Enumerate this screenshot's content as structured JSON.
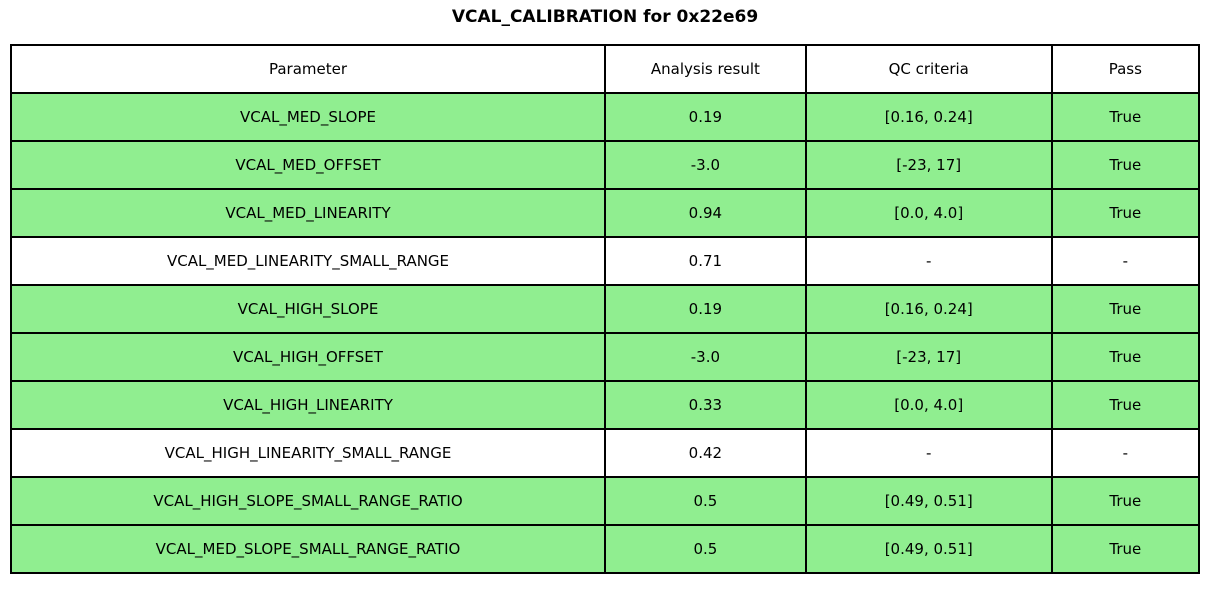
{
  "chart_data": {
    "type": "table",
    "title": "VCAL_CALIBRATION for 0x22e69",
    "columns": [
      "Parameter",
      "Analysis result",
      "QC criteria",
      "Pass"
    ],
    "rows": [
      {
        "parameter": "VCAL_MED_SLOPE",
        "analysis_result": "0.19",
        "qc_criteria": "[0.16, 0.24]",
        "pass": "True",
        "row_style": "pass"
      },
      {
        "parameter": "VCAL_MED_OFFSET",
        "analysis_result": "-3.0",
        "qc_criteria": "[-23, 17]",
        "pass": "True",
        "row_style": "pass"
      },
      {
        "parameter": "VCAL_MED_LINEARITY",
        "analysis_result": "0.94",
        "qc_criteria": "[0.0, 4.0]",
        "pass": "True",
        "row_style": "pass"
      },
      {
        "parameter": "VCAL_MED_LINEARITY_SMALL_RANGE",
        "analysis_result": "0.71",
        "qc_criteria": "-",
        "pass": "-",
        "row_style": "neutral"
      },
      {
        "parameter": "VCAL_HIGH_SLOPE",
        "analysis_result": "0.19",
        "qc_criteria": "[0.16, 0.24]",
        "pass": "True",
        "row_style": "pass"
      },
      {
        "parameter": "VCAL_HIGH_OFFSET",
        "analysis_result": "-3.0",
        "qc_criteria": "[-23, 17]",
        "pass": "True",
        "row_style": "pass"
      },
      {
        "parameter": "VCAL_HIGH_LINEARITY",
        "analysis_result": "0.33",
        "qc_criteria": "[0.0, 4.0]",
        "pass": "True",
        "row_style": "pass"
      },
      {
        "parameter": "VCAL_HIGH_LINEARITY_SMALL_RANGE",
        "analysis_result": "0.42",
        "qc_criteria": "-",
        "pass": "-",
        "row_style": "neutral"
      },
      {
        "parameter": "VCAL_HIGH_SLOPE_SMALL_RANGE_RATIO",
        "analysis_result": "0.5",
        "qc_criteria": "[0.49, 0.51]",
        "pass": "True",
        "row_style": "pass"
      },
      {
        "parameter": "VCAL_MED_SLOPE_SMALL_RANGE_RATIO",
        "analysis_result": "0.5",
        "qc_criteria": "[0.49, 0.51]",
        "pass": "True",
        "row_style": "pass"
      }
    ],
    "layout": {
      "pass_row_color": "#90ee90",
      "neutral_row_color": "#ffffff",
      "header_row_color": "#ffffff",
      "border_color": "#000000",
      "grid": "on",
      "legend": "none"
    }
  }
}
